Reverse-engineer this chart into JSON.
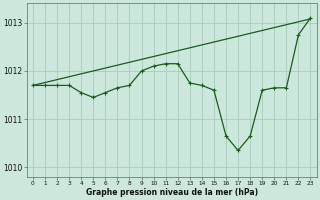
{
  "x": [
    0,
    1,
    2,
    3,
    4,
    5,
    6,
    7,
    8,
    9,
    10,
    11,
    12,
    13,
    14,
    15,
    16,
    17,
    18,
    19,
    20,
    21,
    22,
    23
  ],
  "line_zigzag": [
    1011.7,
    1011.7,
    1011.7,
    1011.7,
    1011.55,
    1011.45,
    1011.55,
    1011.65,
    1011.7,
    1012.0,
    1012.1,
    1012.15,
    1012.15,
    1011.75,
    1011.7,
    1011.6,
    1010.65,
    1010.35,
    1010.65,
    1011.6,
    1011.65,
    1011.65,
    1012.75,
    1013.1
  ],
  "line_diag": [
    1011.7,
    1011.76,
    1011.82,
    1011.88,
    1011.94,
    1012.0,
    1012.06,
    1012.12,
    1012.18,
    1012.24,
    1012.3,
    1012.36,
    1012.42,
    1012.48,
    1012.54,
    1012.6,
    1012.66,
    1012.72,
    1012.78,
    1012.84,
    1012.9,
    1012.96,
    1013.02,
    1013.08
  ],
  "bg_color": "#cce8dc",
  "grid_color": "#aaccbb",
  "line_color": "#1a5c1a",
  "ylabel_ticks": [
    1010,
    1011,
    1012,
    1013
  ],
  "xlabel": "Graphe pression niveau de la mer (hPa)",
  "ylim": [
    1009.8,
    1013.4
  ],
  "xlim": [
    -0.5,
    23.5
  ],
  "figsize": [
    3.2,
    2.0
  ],
  "dpi": 100
}
